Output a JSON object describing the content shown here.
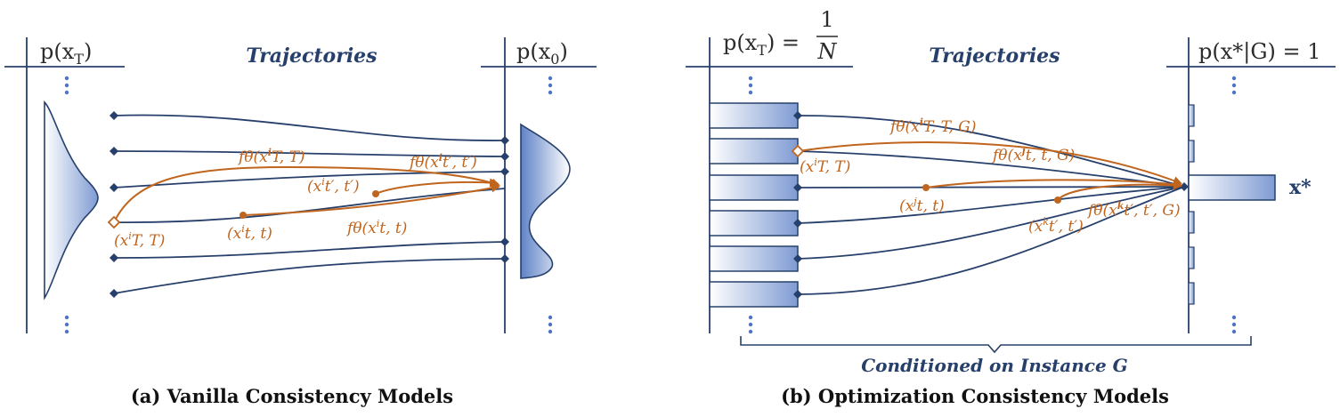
{
  "panel_a": {
    "left_label": "p(x",
    "left_sub": "T",
    "right_label": "p(x",
    "right_sub": "0",
    "heading": "Trajectories",
    "annotations": {
      "f_T": "fθ(x",
      "f_T_rest": "T, T)",
      "f_tp": "fθ(x",
      "f_tp_rest": "t′, t′)",
      "x_tp": "(x",
      "x_tp_rest": "t′, t′)",
      "x_T": "(x",
      "x_T_rest": "T, T)",
      "x_t": "(x",
      "x_t_rest": "t, t)",
      "f_t": "fθ(x",
      "f_t_rest": "t, t)",
      "sup_i": "i"
    },
    "caption": "(a) Vanilla Consistency Models"
  },
  "panel_b": {
    "left_label": "p(x",
    "left_sub": "T",
    "left_eq": ") =",
    "frac_num": "1",
    "frac_den": "N",
    "right_label": "p(x",
    "right_rest": "*|G) = 1",
    "heading": "Trajectories",
    "xstar": "x*",
    "annotations": {
      "f_TG": "fθ(x",
      "f_TG_rest": "T, T, G)",
      "f_tG": "fθ(x",
      "f_tG_rest": "t, t, G)",
      "x_T": "(x",
      "x_T_rest": "T, T)",
      "x_t": "(x",
      "x_t_rest": "t, t)",
      "x_tp": "(x",
      "x_tp_rest": "t′, t′)",
      "f_tpG": "fθ(x",
      "f_tpG_rest": "t′, t′, G)",
      "sup_i": "i",
      "sup_j": "j",
      "sup_k": "k"
    },
    "brace_label": "Conditioned on Instance G",
    "caption": "(b) Optimization Consistency Models"
  },
  "colors": {
    "navy": "#27406b",
    "orange": "#c0651e",
    "dots": "#4f74c7"
  }
}
